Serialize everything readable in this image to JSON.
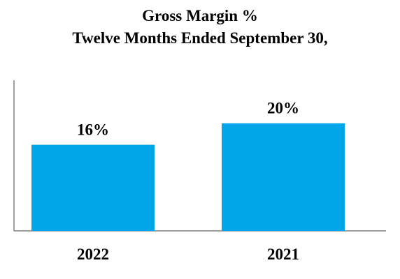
{
  "chart_data": {
    "type": "bar",
    "title": "Gross Margin %",
    "subtitle": "Twelve Months Ended September 30,",
    "categories": [
      "2022",
      "2021"
    ],
    "values": [
      16,
      20
    ],
    "value_labels": [
      "16%",
      "20%"
    ],
    "xlabel": "",
    "ylabel": "",
    "ylim": [
      0,
      28
    ],
    "grid": false,
    "bar_color": "#00A6E8",
    "axis_color": "#808080"
  }
}
